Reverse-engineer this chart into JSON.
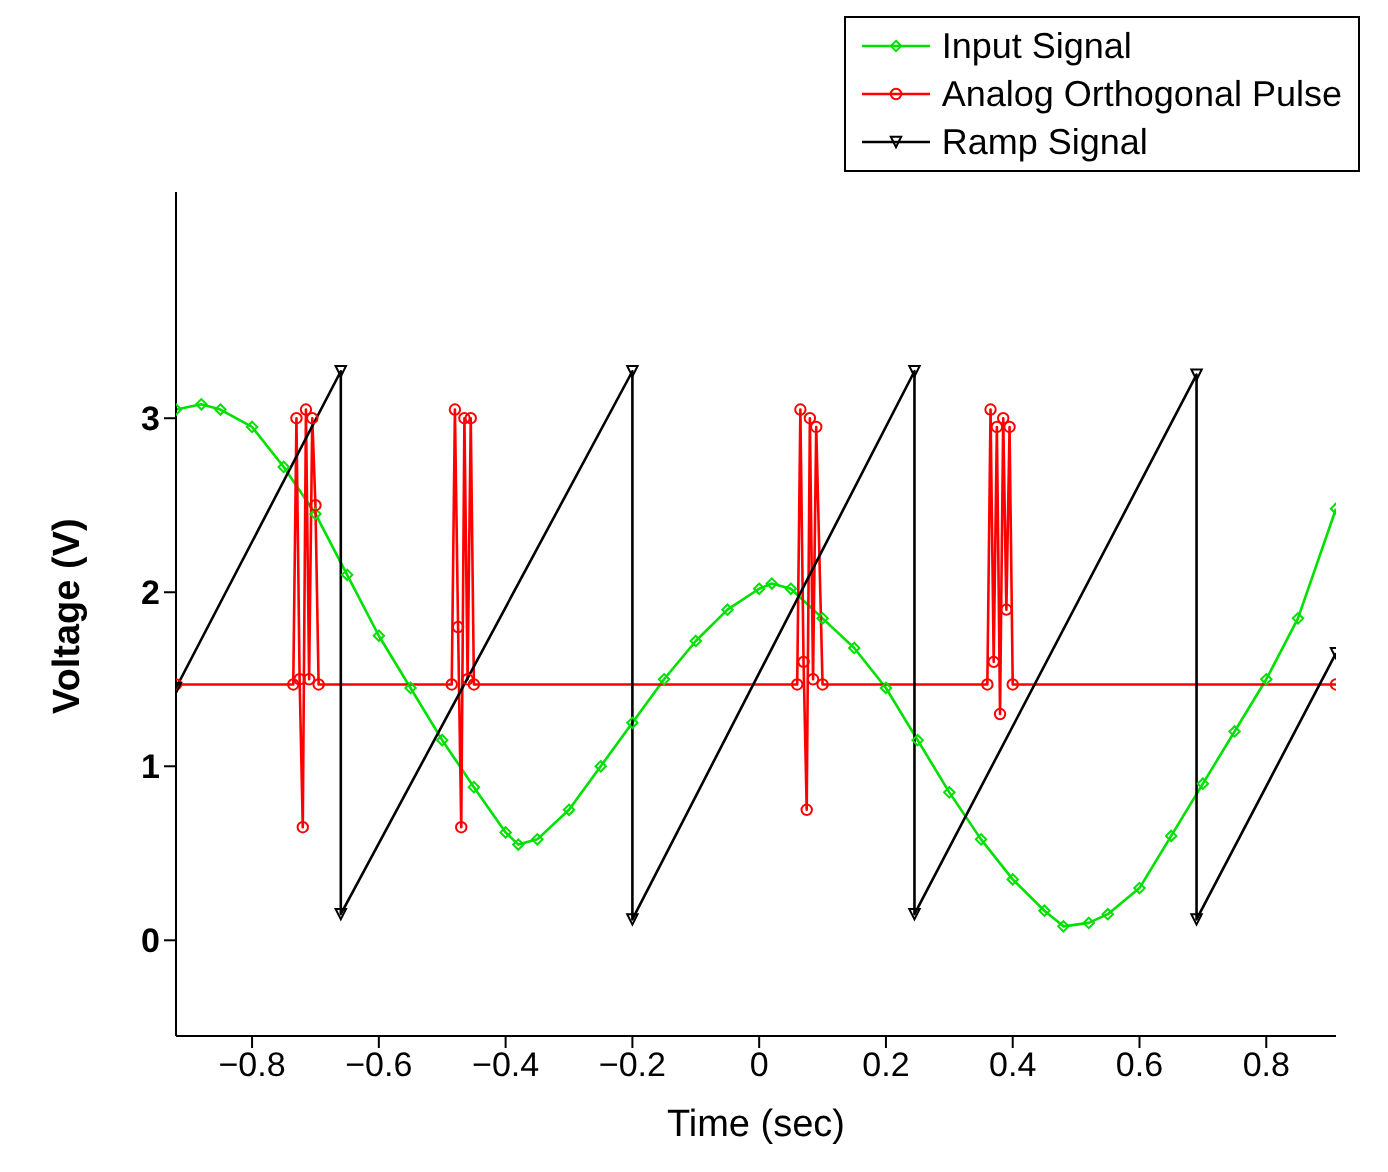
{
  "chart_data": {
    "type": "line",
    "xlabel": "Time (sec)",
    "ylabel": "Voltage (V)",
    "xlim": [
      -0.92,
      0.91
    ],
    "ylim": [
      -0.55,
      4.3
    ],
    "xticks": [
      -0.8,
      -0.6,
      -0.4,
      -0.2,
      0,
      0.2,
      0.4,
      0.6,
      0.8
    ],
    "yticks": [
      0,
      1,
      2,
      3
    ],
    "grid": false,
    "legend": "top right",
    "series": [
      {
        "name": "Input Signal",
        "color": "#00e000",
        "marker": "diamond",
        "x": [
          -0.92,
          -0.88,
          -0.85,
          -0.8,
          -0.75,
          -0.7,
          -0.65,
          -0.6,
          -0.55,
          -0.5,
          -0.45,
          -0.4,
          -0.38,
          -0.35,
          -0.3,
          -0.25,
          -0.2,
          -0.15,
          -0.1,
          -0.05,
          0,
          0.02,
          0.05,
          0.1,
          0.15,
          0.2,
          0.25,
          0.3,
          0.35,
          0.4,
          0.45,
          0.48,
          0.52,
          0.55,
          0.6,
          0.65,
          0.7,
          0.75,
          0.8,
          0.85,
          0.91
        ],
        "values": [
          3.05,
          3.08,
          3.05,
          2.95,
          2.72,
          2.45,
          2.1,
          1.75,
          1.45,
          1.15,
          0.88,
          0.62,
          0.55,
          0.58,
          0.75,
          1.0,
          1.25,
          1.5,
          1.72,
          1.9,
          2.02,
          2.05,
          2.02,
          1.85,
          1.68,
          1.45,
          1.15,
          0.85,
          0.58,
          0.35,
          0.17,
          0.08,
          0.1,
          0.15,
          0.3,
          0.6,
          0.9,
          1.2,
          1.5,
          1.85,
          2.48
        ]
      },
      {
        "name": "Analog Orthogonal Pulse",
        "color": "#ff0000",
        "marker": "circle",
        "x": [
          -0.92,
          -0.735,
          -0.73,
          -0.725,
          -0.72,
          -0.715,
          -0.71,
          -0.705,
          -0.7,
          -0.695,
          -0.485,
          -0.48,
          -0.475,
          -0.47,
          -0.465,
          -0.46,
          -0.455,
          -0.45,
          0.06,
          0.065,
          0.07,
          0.075,
          0.08,
          0.085,
          0.09,
          0.1,
          0.36,
          0.365,
          0.37,
          0.375,
          0.38,
          0.385,
          0.39,
          0.395,
          0.4,
          0.91
        ],
        "values": [
          1.47,
          1.47,
          3.0,
          1.5,
          0.65,
          3.05,
          1.5,
          3.0,
          2.5,
          1.47,
          1.47,
          3.05,
          1.8,
          0.65,
          3.0,
          1.5,
          3.0,
          1.47,
          1.47,
          3.05,
          1.6,
          0.75,
          3.0,
          1.5,
          2.95,
          1.47,
          1.47,
          3.05,
          1.6,
          2.95,
          1.3,
          3.0,
          1.9,
          2.95,
          1.47,
          1.47
        ]
      },
      {
        "name": "Ramp Signal",
        "color": "#000000",
        "marker": "triangle",
        "x": [
          -0.92,
          -0.66,
          -0.66,
          -0.2,
          -0.2,
          0.245,
          0.245,
          0.69,
          0.69,
          0.91
        ],
        "values": [
          1.45,
          3.27,
          0.15,
          3.27,
          0.12,
          3.27,
          0.15,
          3.25,
          0.12,
          1.65
        ]
      }
    ]
  }
}
